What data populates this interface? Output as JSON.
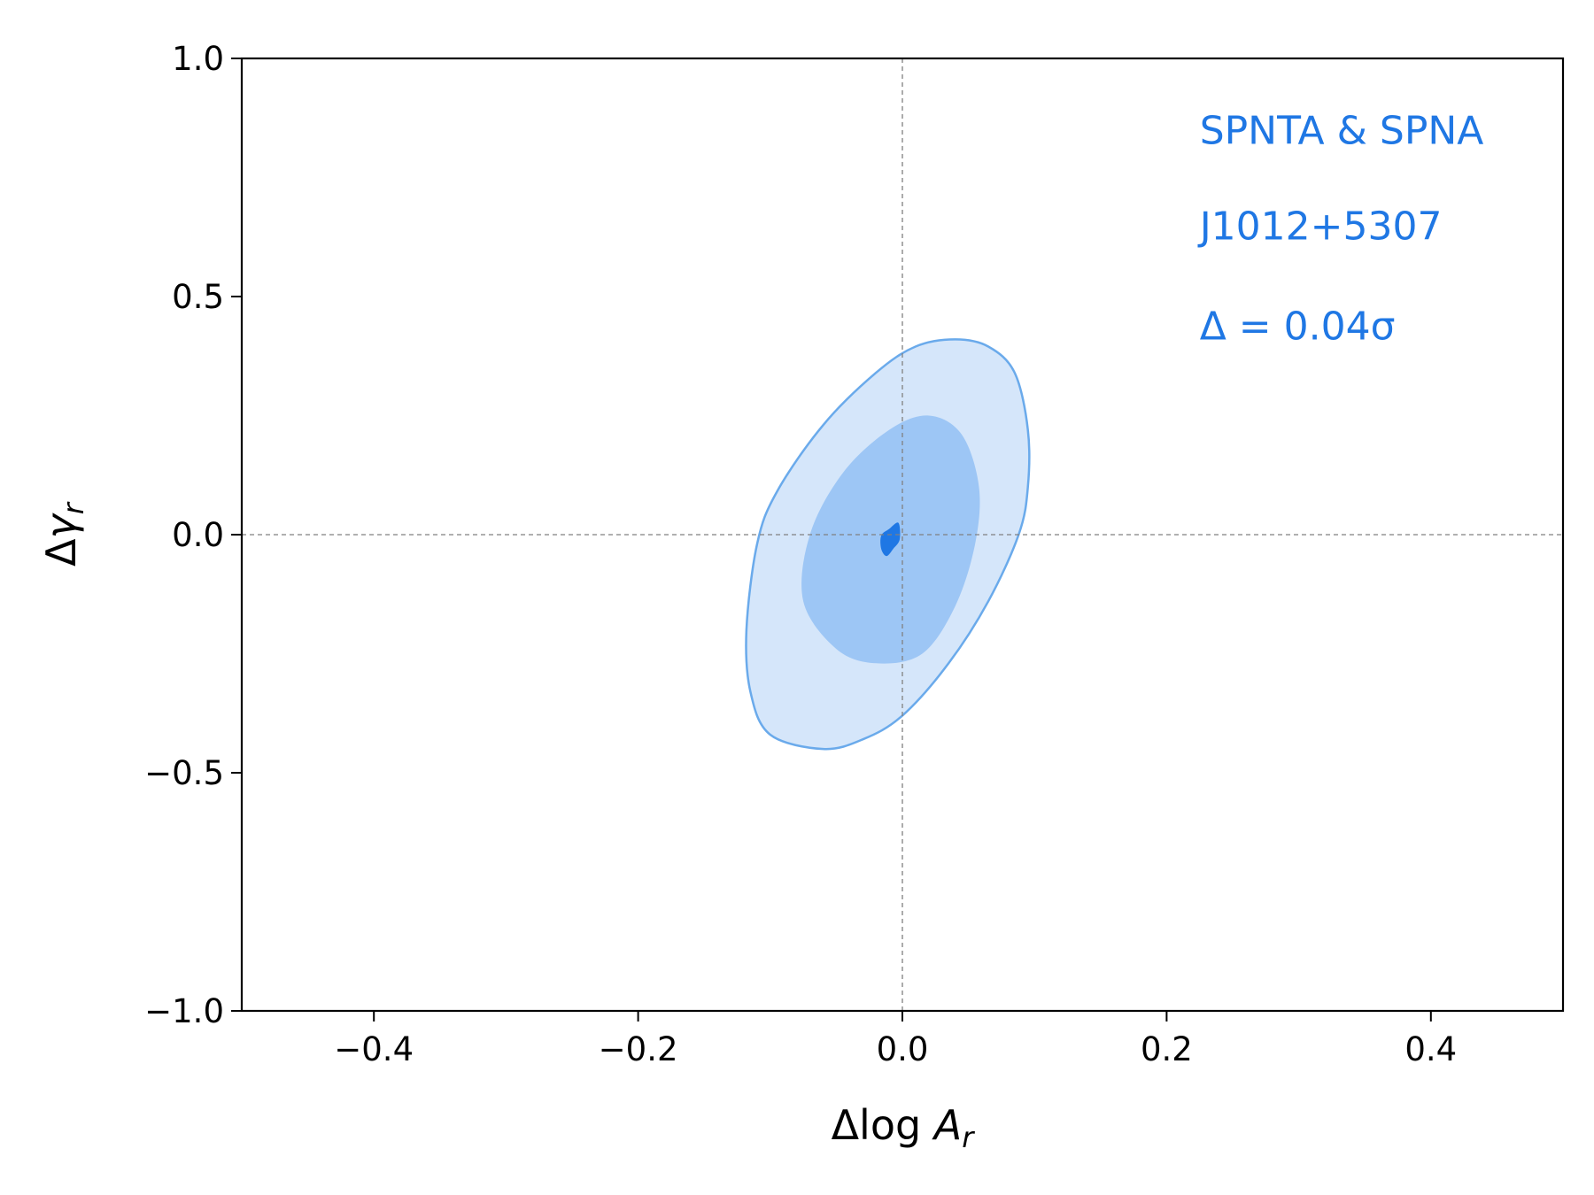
{
  "chart_data": {
    "type": "contour",
    "xlabel": {
      "prefix": "Δlog ",
      "sym": "A",
      "sub": "r"
    },
    "ylabel": {
      "prefix": "Δ",
      "sym": "γ",
      "sub": "r"
    },
    "xlim": [
      -0.5,
      0.5
    ],
    "ylim": [
      -1.0,
      1.0
    ],
    "xticks": [
      -0.4,
      -0.2,
      0.0,
      0.2,
      0.4
    ],
    "xtick_labels": [
      "−0.4",
      "−0.2",
      "0.0",
      "0.2",
      "0.4"
    ],
    "yticks": [
      -1.0,
      -0.5,
      0.0,
      0.5,
      1.0
    ],
    "ytick_labels": [
      "−1.0",
      "−0.5",
      "0.0",
      "0.5",
      "1.0"
    ],
    "grid": false,
    "reference_lines": {
      "x": 0.0,
      "y": 0.0,
      "style": "dashed",
      "color": "#808080"
    },
    "annotations": [
      "SPNTA & SPNA",
      "J1012+5307",
      "Δ = 0.04σ"
    ],
    "annotation_color": "#1f77e4",
    "series": [
      {
        "level": "outer",
        "fill": "#d5e6fa",
        "stroke": "#6aaaeb",
        "points": [
          [
            0.04,
            0.41
          ],
          [
            0.065,
            0.395
          ],
          [
            0.085,
            0.34
          ],
          [
            0.095,
            0.22
          ],
          [
            0.095,
            0.1
          ],
          [
            0.088,
            0.0
          ],
          [
            0.065,
            -0.14
          ],
          [
            0.035,
            -0.27
          ],
          [
            0.0,
            -0.38
          ],
          [
            -0.03,
            -0.43
          ],
          [
            -0.06,
            -0.45
          ],
          [
            -0.1,
            -0.42
          ],
          [
            -0.115,
            -0.33
          ],
          [
            -0.118,
            -0.2
          ],
          [
            -0.11,
            -0.02
          ],
          [
            -0.095,
            0.09
          ],
          [
            -0.06,
            0.23
          ],
          [
            -0.02,
            0.34
          ],
          [
            0.01,
            0.395
          ]
        ]
      },
      {
        "level": "middle",
        "fill": "#9dc6f5",
        "stroke": "none",
        "points": [
          [
            0.02,
            0.25
          ],
          [
            0.045,
            0.21
          ],
          [
            0.058,
            0.1
          ],
          [
            0.055,
            -0.02
          ],
          [
            0.04,
            -0.15
          ],
          [
            0.015,
            -0.25
          ],
          [
            -0.02,
            -0.27
          ],
          [
            -0.05,
            -0.24
          ],
          [
            -0.075,
            -0.14
          ],
          [
            -0.07,
            0.0
          ],
          [
            -0.045,
            0.13
          ],
          [
            -0.01,
            0.22
          ]
        ]
      },
      {
        "level": "inner",
        "fill": "#1f77e4",
        "stroke": "none",
        "points": [
          [
            -0.003,
            0.025
          ],
          [
            -0.002,
            -0.01
          ],
          [
            -0.007,
            -0.03
          ],
          [
            -0.012,
            -0.045
          ],
          [
            -0.016,
            -0.03
          ],
          [
            -0.016,
            -0.002
          ],
          [
            -0.01,
            0.012
          ]
        ]
      }
    ]
  }
}
